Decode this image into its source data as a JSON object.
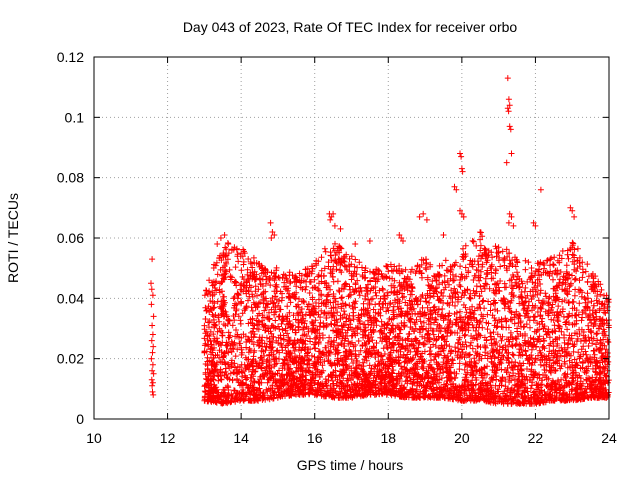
{
  "chart_data": {
    "type": "scatter",
    "title": "Day 043 of 2023, Rate Of TEC Index for receiver orbo",
    "xlabel": "GPS time / hours",
    "ylabel": "ROTI / TECUs",
    "xlim": [
      10,
      24
    ],
    "ylim": [
      0,
      0.12
    ],
    "x_ticks": [
      "10",
      "12",
      "14",
      "16",
      "18",
      "20",
      "22",
      "24"
    ],
    "y_ticks": [
      "0",
      "0.02",
      "0.04",
      "0.06",
      "0.08",
      "0.1",
      "0.12"
    ],
    "grid": true,
    "marker": "+",
    "color": "#ff0000",
    "density_profile": {
      "x_hours": [
        13.0,
        13.5,
        14.0,
        14.5,
        15.0,
        15.5,
        16.0,
        16.5,
        17.0,
        17.5,
        18.0,
        18.5,
        19.0,
        19.5,
        20.0,
        20.5,
        21.0,
        21.5,
        22.0,
        22.5,
        23.0,
        23.5,
        24.0
      ],
      "upper_envelope_roti": [
        0.042,
        0.06,
        0.058,
        0.052,
        0.05,
        0.048,
        0.052,
        0.06,
        0.054,
        0.05,
        0.052,
        0.05,
        0.054,
        0.052,
        0.058,
        0.062,
        0.058,
        0.054,
        0.052,
        0.054,
        0.06,
        0.05,
        0.04
      ],
      "lower_envelope_roti": [
        0.006,
        0.005,
        0.006,
        0.006,
        0.007,
        0.008,
        0.008,
        0.007,
        0.007,
        0.008,
        0.008,
        0.007,
        0.007,
        0.007,
        0.006,
        0.006,
        0.005,
        0.005,
        0.005,
        0.006,
        0.006,
        0.007,
        0.007
      ]
    },
    "series": [
      {
        "points": [
          [
            11.58,
            0.053
          ],
          [
            11.55,
            0.045
          ],
          [
            11.57,
            0.043
          ],
          [
            11.6,
            0.041
          ],
          [
            11.56,
            0.038
          ],
          [
            11.62,
            0.034
          ],
          [
            11.58,
            0.031
          ],
          [
            11.6,
            0.028
          ],
          [
            11.57,
            0.026
          ],
          [
            11.61,
            0.024
          ],
          [
            11.59,
            0.022
          ],
          [
            11.56,
            0.02
          ],
          [
            11.6,
            0.018
          ],
          [
            11.58,
            0.016
          ],
          [
            11.62,
            0.015
          ],
          [
            11.57,
            0.013
          ],
          [
            11.6,
            0.012
          ],
          [
            11.58,
            0.011
          ],
          [
            11.59,
            0.009
          ],
          [
            11.61,
            0.008
          ],
          [
            13.35,
            0.058
          ],
          [
            13.45,
            0.06
          ],
          [
            13.55,
            0.061
          ],
          [
            13.65,
            0.058
          ],
          [
            13.75,
            0.056
          ],
          [
            14.0,
            0.055
          ],
          [
            14.1,
            0.055
          ],
          [
            14.8,
            0.065
          ],
          [
            14.85,
            0.062
          ],
          [
            14.9,
            0.061
          ],
          [
            14.82,
            0.06
          ],
          [
            16.4,
            0.068
          ],
          [
            16.45,
            0.067
          ],
          [
            16.5,
            0.068
          ],
          [
            16.42,
            0.066
          ],
          [
            16.55,
            0.064
          ],
          [
            16.7,
            0.063
          ],
          [
            17.1,
            0.058
          ],
          [
            17.5,
            0.059
          ],
          [
            18.3,
            0.061
          ],
          [
            18.35,
            0.06
          ],
          [
            18.4,
            0.059
          ],
          [
            18.85,
            0.067
          ],
          [
            18.95,
            0.068
          ],
          [
            19.05,
            0.066
          ],
          [
            19.5,
            0.061
          ],
          [
            19.8,
            0.077
          ],
          [
            19.85,
            0.076
          ],
          [
            19.95,
            0.088
          ],
          [
            19.98,
            0.087
          ],
          [
            20.0,
            0.083
          ],
          [
            20.02,
            0.082
          ],
          [
            19.95,
            0.069
          ],
          [
            20.0,
            0.068
          ],
          [
            20.05,
            0.067
          ],
          [
            21.25,
            0.113
          ],
          [
            21.28,
            0.106
          ],
          [
            21.3,
            0.104
          ],
          [
            21.25,
            0.103
          ],
          [
            21.27,
            0.102
          ],
          [
            21.3,
            0.097
          ],
          [
            21.33,
            0.096
          ],
          [
            21.35,
            0.088
          ],
          [
            21.22,
            0.085
          ],
          [
            21.3,
            0.068
          ],
          [
            21.35,
            0.067
          ],
          [
            21.4,
            0.064
          ],
          [
            21.28,
            0.065
          ],
          [
            21.95,
            0.065
          ],
          [
            22.0,
            0.064
          ],
          [
            22.15,
            0.076
          ],
          [
            22.95,
            0.07
          ],
          [
            23.0,
            0.069
          ],
          [
            23.05,
            0.067
          ]
        ]
      }
    ]
  }
}
